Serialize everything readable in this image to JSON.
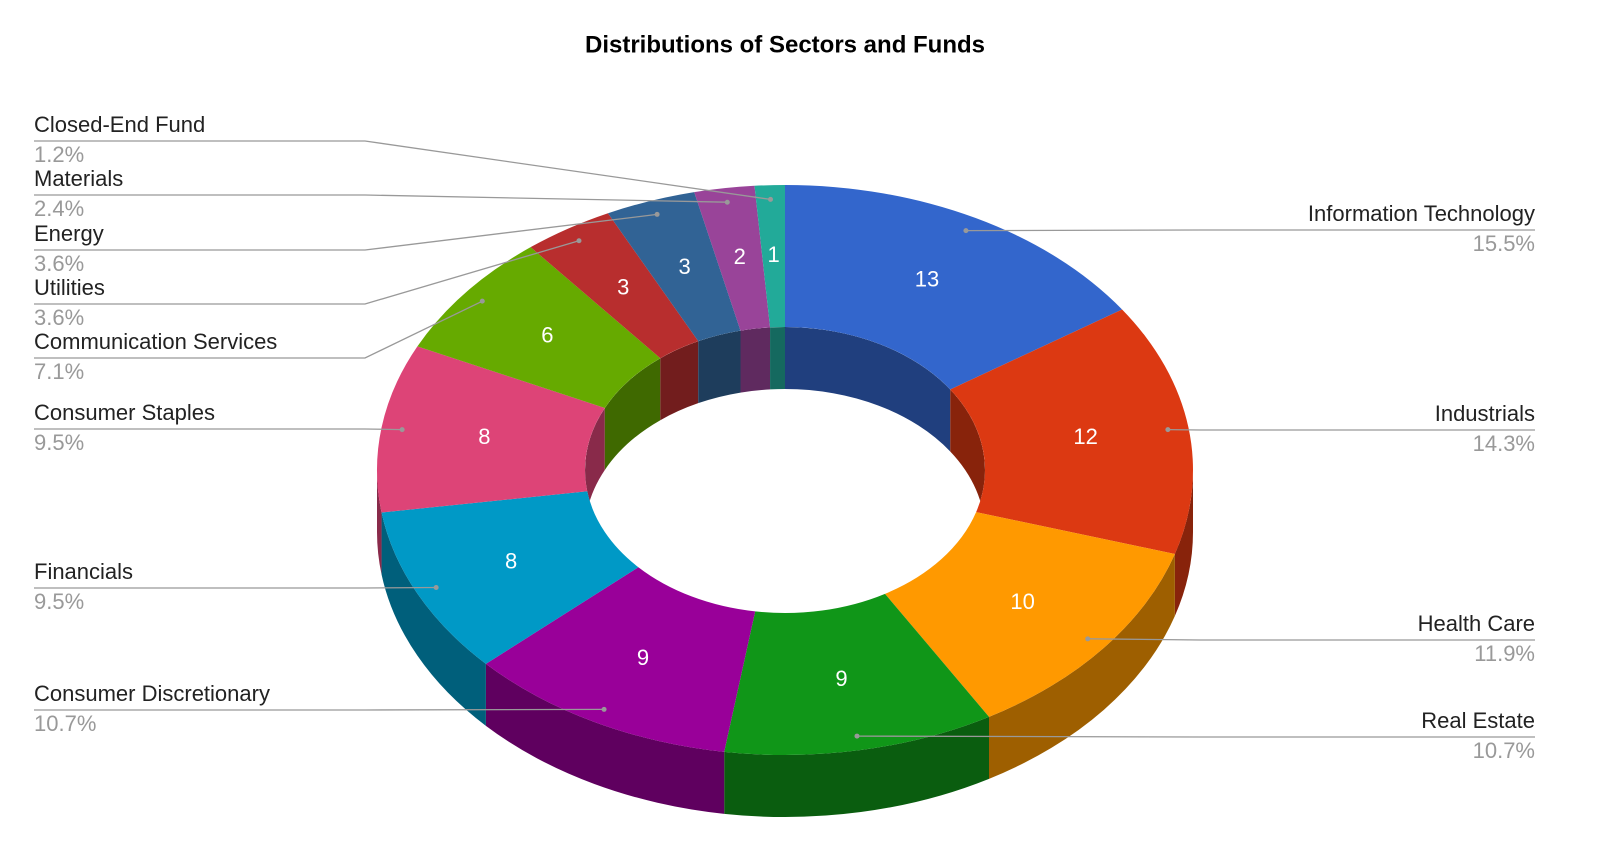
{
  "chart_data": {
    "type": "donut3d",
    "title": "Distributions of Sectors and Funds",
    "categories": [
      "Information Technology",
      "Industrials",
      "Health Care",
      "Real Estate",
      "Consumer Discretionary",
      "Financials",
      "Consumer Staples",
      "Communication Services",
      "Utilities",
      "Energy",
      "Materials",
      "Closed-End Fund"
    ],
    "values": [
      13,
      12,
      10,
      9,
      9,
      8,
      8,
      6,
      3,
      3,
      2,
      1
    ],
    "percentages": [
      "15.5%",
      "14.3%",
      "11.9%",
      "10.7%",
      "10.7%",
      "9.5%",
      "9.5%",
      "7.1%",
      "3.6%",
      "3.6%",
      "2.4%",
      "1.2%"
    ],
    "colors": [
      "#3366cc",
      "#dc3912",
      "#ff9900",
      "#109618",
      "#990099",
      "#0099c6",
      "#dd4477",
      "#66aa00",
      "#b82e2e",
      "#316395",
      "#994499",
      "#22aa99"
    ]
  }
}
